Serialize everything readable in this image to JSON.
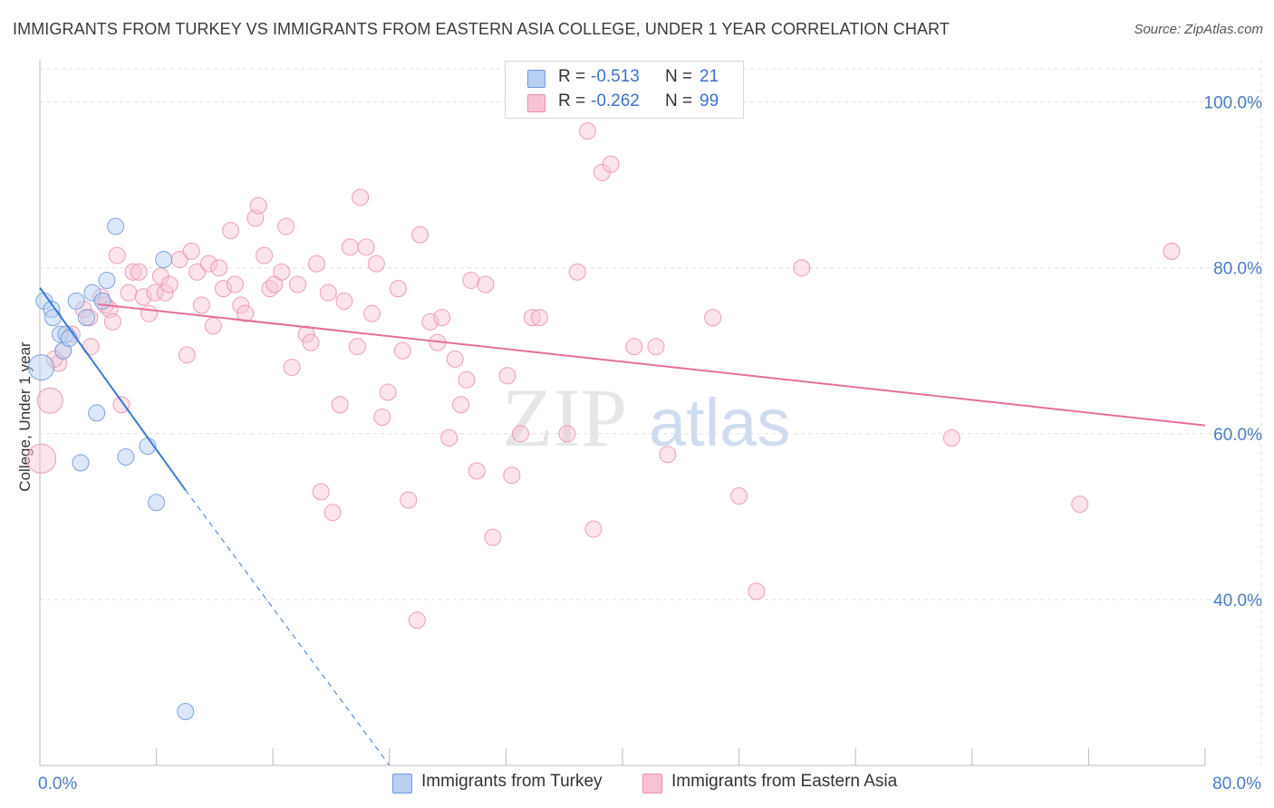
{
  "header": {
    "title": "IMMIGRANTS FROM TURKEY VS IMMIGRANTS FROM EASTERN ASIA COLLEGE, UNDER 1 YEAR CORRELATION CHART",
    "source": "Source: ZipAtlas.com"
  },
  "watermark": {
    "zip": "ZIP",
    "atlas": "atlas"
  },
  "legend": {
    "r_label": "R =",
    "n_label": "N =",
    "rows": [
      {
        "r": "-0.513",
        "n": "21"
      },
      {
        "r": "-0.262",
        "n": "99"
      }
    ]
  },
  "colors": {
    "turkey_fill": "#b9d0f3",
    "turkey_stroke": "#6f9ad8",
    "turkey_line": "#3b78d4",
    "asia_fill": "#f8c3d3",
    "asia_stroke": "#e88fab",
    "asia_line": "#e3709a",
    "tick_label": "#4a7bc8",
    "grid": "#dddddd"
  },
  "chart_data": {
    "type": "scatter",
    "title": "IMMIGRANTS FROM TURKEY VS IMMIGRANTS FROM EASTERN ASIA COLLEGE, UNDER 1 YEAR CORRELATION CHART",
    "xlabel": "",
    "ylabel": "College, Under 1 year",
    "xlim": [
      0,
      80
    ],
    "ylim": [
      20,
      104
    ],
    "x_tick_labels": [
      {
        "value": 0,
        "label": "0.0%"
      },
      {
        "value": 80,
        "label": "80.0%"
      }
    ],
    "y_tick_labels": [
      {
        "value": 40,
        "label": "40.0%"
      },
      {
        "value": 60,
        "label": "60.0%"
      },
      {
        "value": 80,
        "label": "80.0%"
      },
      {
        "value": 100,
        "label": "100.0%"
      }
    ],
    "grid": true,
    "legend_position": "top-center",
    "series": [
      {
        "name": "Immigrants from Turkey",
        "r": -0.513,
        "n": 21,
        "trend": {
          "x0": 0,
          "y0": 77.6,
          "x1": 10,
          "y1": 53.2,
          "dash_to_x": 24,
          "dash_to_y": 20
        },
        "points": [
          {
            "x": 0.3,
            "y": 76,
            "s": 9
          },
          {
            "x": 0.8,
            "y": 75,
            "s": 9
          },
          {
            "x": 0.9,
            "y": 74,
            "s": 9
          },
          {
            "x": 1.4,
            "y": 72,
            "s": 9
          },
          {
            "x": 1.8,
            "y": 72,
            "s": 9
          },
          {
            "x": 1.6,
            "y": 70,
            "s": 9
          },
          {
            "x": 0.1,
            "y": 68,
            "s": 14
          },
          {
            "x": 2.5,
            "y": 76,
            "s": 9
          },
          {
            "x": 3.2,
            "y": 74,
            "s": 9
          },
          {
            "x": 3.6,
            "y": 77,
            "s": 9
          },
          {
            "x": 4.3,
            "y": 76,
            "s": 9
          },
          {
            "x": 4.6,
            "y": 78.5,
            "s": 9
          },
          {
            "x": 5.2,
            "y": 85,
            "s": 9
          },
          {
            "x": 8.5,
            "y": 81,
            "s": 9
          },
          {
            "x": 3.9,
            "y": 62.5,
            "s": 9
          },
          {
            "x": 2.8,
            "y": 56.5,
            "s": 9
          },
          {
            "x": 5.9,
            "y": 57.2,
            "s": 9
          },
          {
            "x": 7.4,
            "y": 58.5,
            "s": 9
          },
          {
            "x": 8.0,
            "y": 51.7,
            "s": 9
          },
          {
            "x": 10.0,
            "y": 26.5,
            "s": 9
          },
          {
            "x": 2.0,
            "y": 71.5,
            "s": 9
          }
        ]
      },
      {
        "name": "Immigrants from Eastern Asia",
        "r": -0.262,
        "n": 99,
        "trend": {
          "x0": 4,
          "y0": 75.6,
          "x1": 80,
          "y1": 61
        },
        "points": [
          {
            "x": 0.1,
            "y": 57,
            "s": 16
          },
          {
            "x": 0.7,
            "y": 64,
            "s": 14
          },
          {
            "x": 1.3,
            "y": 68.5,
            "s": 9
          },
          {
            "x": 1.6,
            "y": 70,
            "s": 9
          },
          {
            "x": 2.2,
            "y": 72,
            "s": 9
          },
          {
            "x": 3.0,
            "y": 75,
            "s": 9
          },
          {
            "x": 3.4,
            "y": 74,
            "s": 9
          },
          {
            "x": 3.5,
            "y": 70.5,
            "s": 9
          },
          {
            "x": 4.2,
            "y": 76.5,
            "s": 9
          },
          {
            "x": 4.5,
            "y": 75.5,
            "s": 9
          },
          {
            "x": 4.8,
            "y": 75,
            "s": 9
          },
          {
            "x": 5.0,
            "y": 73.5,
            "s": 9
          },
          {
            "x": 5.3,
            "y": 81.5,
            "s": 9
          },
          {
            "x": 5.6,
            "y": 63.5,
            "s": 9
          },
          {
            "x": 6.1,
            "y": 77,
            "s": 9
          },
          {
            "x": 6.4,
            "y": 79.5,
            "s": 9
          },
          {
            "x": 6.8,
            "y": 79.5,
            "s": 9
          },
          {
            "x": 7.1,
            "y": 76.5,
            "s": 9
          },
          {
            "x": 7.5,
            "y": 74.5,
            "s": 9
          },
          {
            "x": 7.9,
            "y": 77,
            "s": 9
          },
          {
            "x": 8.3,
            "y": 79,
            "s": 9
          },
          {
            "x": 8.6,
            "y": 77,
            "s": 9
          },
          {
            "x": 8.9,
            "y": 78,
            "s": 9
          },
          {
            "x": 9.6,
            "y": 81,
            "s": 9
          },
          {
            "x": 10.1,
            "y": 69.5,
            "s": 9
          },
          {
            "x": 10.4,
            "y": 82,
            "s": 9
          },
          {
            "x": 10.8,
            "y": 79.5,
            "s": 9
          },
          {
            "x": 11.1,
            "y": 75.5,
            "s": 9
          },
          {
            "x": 11.6,
            "y": 80.5,
            "s": 9
          },
          {
            "x": 11.9,
            "y": 73,
            "s": 9
          },
          {
            "x": 12.3,
            "y": 80,
            "s": 9
          },
          {
            "x": 12.6,
            "y": 77.5,
            "s": 9
          },
          {
            "x": 13.1,
            "y": 84.5,
            "s": 9
          },
          {
            "x": 13.4,
            "y": 78,
            "s": 9
          },
          {
            "x": 13.8,
            "y": 75.5,
            "s": 9
          },
          {
            "x": 14.1,
            "y": 74.5,
            "s": 9
          },
          {
            "x": 14.8,
            "y": 86,
            "s": 9
          },
          {
            "x": 15.0,
            "y": 87.5,
            "s": 9
          },
          {
            "x": 15.4,
            "y": 81.5,
            "s": 9
          },
          {
            "x": 15.8,
            "y": 77.5,
            "s": 9
          },
          {
            "x": 16.1,
            "y": 78,
            "s": 9
          },
          {
            "x": 16.6,
            "y": 79.5,
            "s": 9
          },
          {
            "x": 16.9,
            "y": 85,
            "s": 9
          },
          {
            "x": 17.3,
            "y": 68,
            "s": 9
          },
          {
            "x": 17.7,
            "y": 78,
            "s": 9
          },
          {
            "x": 18.3,
            "y": 72,
            "s": 9
          },
          {
            "x": 18.6,
            "y": 71,
            "s": 9
          },
          {
            "x": 19.0,
            "y": 80.5,
            "s": 9
          },
          {
            "x": 19.3,
            "y": 53,
            "s": 9
          },
          {
            "x": 19.8,
            "y": 77,
            "s": 9
          },
          {
            "x": 20.1,
            "y": 50.5,
            "s": 9
          },
          {
            "x": 20.6,
            "y": 63.5,
            "s": 9
          },
          {
            "x": 20.9,
            "y": 76,
            "s": 9
          },
          {
            "x": 21.3,
            "y": 82.5,
            "s": 9
          },
          {
            "x": 21.8,
            "y": 70.5,
            "s": 9
          },
          {
            "x": 22.0,
            "y": 88.5,
            "s": 9
          },
          {
            "x": 22.4,
            "y": 82.5,
            "s": 9
          },
          {
            "x": 22.8,
            "y": 74.5,
            "s": 9
          },
          {
            "x": 23.1,
            "y": 80.5,
            "s": 9
          },
          {
            "x": 23.5,
            "y": 62,
            "s": 9
          },
          {
            "x": 23.9,
            "y": 65,
            "s": 9
          },
          {
            "x": 24.6,
            "y": 77.5,
            "s": 9
          },
          {
            "x": 24.9,
            "y": 70,
            "s": 9
          },
          {
            "x": 25.3,
            "y": 52,
            "s": 9
          },
          {
            "x": 25.9,
            "y": 37.5,
            "s": 9
          },
          {
            "x": 26.1,
            "y": 84,
            "s": 9
          },
          {
            "x": 26.8,
            "y": 73.5,
            "s": 9
          },
          {
            "x": 27.3,
            "y": 71,
            "s": 9
          },
          {
            "x": 27.6,
            "y": 74,
            "s": 9
          },
          {
            "x": 28.1,
            "y": 59.5,
            "s": 9
          },
          {
            "x": 28.5,
            "y": 69,
            "s": 9
          },
          {
            "x": 28.9,
            "y": 63.5,
            "s": 9
          },
          {
            "x": 29.3,
            "y": 66.5,
            "s": 9
          },
          {
            "x": 29.6,
            "y": 78.5,
            "s": 9
          },
          {
            "x": 30.0,
            "y": 55.5,
            "s": 9
          },
          {
            "x": 30.6,
            "y": 78,
            "s": 9
          },
          {
            "x": 31.1,
            "y": 47.5,
            "s": 9
          },
          {
            "x": 32.1,
            "y": 67,
            "s": 9
          },
          {
            "x": 32.4,
            "y": 55,
            "s": 9
          },
          {
            "x": 33.0,
            "y": 60,
            "s": 9
          },
          {
            "x": 33.8,
            "y": 74,
            "s": 9
          },
          {
            "x": 34.3,
            "y": 74,
            "s": 9
          },
          {
            "x": 36.2,
            "y": 60,
            "s": 9
          },
          {
            "x": 36.9,
            "y": 79.5,
            "s": 9
          },
          {
            "x": 37.6,
            "y": 96.5,
            "s": 9
          },
          {
            "x": 38.0,
            "y": 48.5,
            "s": 9
          },
          {
            "x": 38.6,
            "y": 91.5,
            "s": 9
          },
          {
            "x": 39.2,
            "y": 92.5,
            "s": 9
          },
          {
            "x": 40.8,
            "y": 70.5,
            "s": 9
          },
          {
            "x": 42.3,
            "y": 70.5,
            "s": 9
          },
          {
            "x": 43.1,
            "y": 57.5,
            "s": 9
          },
          {
            "x": 46.2,
            "y": 74,
            "s": 9
          },
          {
            "x": 48.0,
            "y": 52.5,
            "s": 9
          },
          {
            "x": 49.2,
            "y": 41,
            "s": 9
          },
          {
            "x": 52.3,
            "y": 80,
            "s": 9
          },
          {
            "x": 62.6,
            "y": 59.5,
            "s": 9
          },
          {
            "x": 71.4,
            "y": 51.5,
            "s": 9
          },
          {
            "x": 77.7,
            "y": 82,
            "s": 9
          },
          {
            "x": 1.0,
            "y": 69,
            "s": 9
          }
        ]
      }
    ]
  }
}
